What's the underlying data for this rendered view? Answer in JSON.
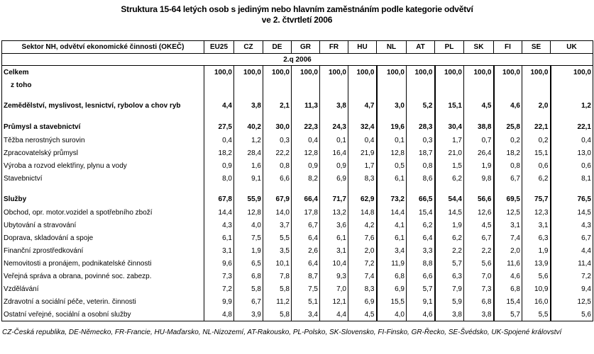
{
  "title_line1": "Struktura 15-64 letých osob s jediným nebo hlavním zaměstnáním podle kategorie odvětví",
  "title_line2": "ve 2. čtvrtletí 2006",
  "header": {
    "label": "Sektor NH, odvětví ekonomické činnosti (OKEČ)",
    "countries": [
      "EU25",
      "CZ",
      "DE",
      "GR",
      "FR",
      "HU",
      "NL",
      "AT",
      "PL",
      "SK",
      "FI",
      "SE",
      "UK"
    ]
  },
  "period": "2.q 2006",
  "rows": [
    {
      "label": "Celkem",
      "bold": true,
      "values": [
        "100,0",
        "100,0",
        "100,0",
        "100,0",
        "100,0",
        "100,0",
        "100,0",
        "100,0",
        "100,0",
        "100,0",
        "100,0",
        "100,0",
        "100,0"
      ]
    },
    {
      "label": "z toho",
      "bold": true,
      "values": []
    },
    {
      "label": "Zemědělství, myslivost, lesnictví, rybolov a chov ryb",
      "bold": true,
      "values": [
        "4,4",
        "3,8",
        "2,1",
        "11,3",
        "3,8",
        "4,7",
        "3,0",
        "5,2",
        "15,1",
        "4,5",
        "4,6",
        "2,0",
        "1,2"
      ]
    },
    {
      "label": "Průmysl a stavebnictví",
      "bold": true,
      "values": [
        "27,5",
        "40,2",
        "30,0",
        "22,3",
        "24,3",
        "32,4",
        "19,6",
        "28,3",
        "30,4",
        "38,8",
        "25,8",
        "22,1",
        "22,1"
      ]
    },
    {
      "label": "Těžba nerostných surovin",
      "bold": false,
      "values": [
        "0,4",
        "1,2",
        "0,3",
        "0,4",
        "0,1",
        "0,4",
        "0,1",
        "0,3",
        "1,7",
        "0,7",
        "0,2",
        "0,2",
        "0,4"
      ]
    },
    {
      "label": "Zpracovatelský průmysl",
      "bold": false,
      "values": [
        "18,2",
        "28,4",
        "22,2",
        "12,8",
        "16,4",
        "21,9",
        "12,8",
        "18,7",
        "21,0",
        "26,4",
        "18,2",
        "15,1",
        "13,0"
      ]
    },
    {
      "label": "Výroba a rozvod elektřiny, plynu a vody",
      "bold": false,
      "values": [
        "0,9",
        "1,6",
        "0,8",
        "0,9",
        "0,9",
        "1,7",
        "0,5",
        "0,8",
        "1,5",
        "1,9",
        "0,8",
        "0,6",
        "0,6"
      ]
    },
    {
      "label": "Stavebnictví",
      "bold": false,
      "values": [
        "8,0",
        "9,1",
        "6,6",
        "8,2",
        "6,9",
        "8,3",
        "6,1",
        "8,6",
        "6,2",
        "9,8",
        "6,7",
        "6,2",
        "8,1"
      ]
    },
    {
      "label": "Služby",
      "bold": true,
      "values": [
        "67,8",
        "55,9",
        "67,9",
        "66,4",
        "71,7",
        "62,9",
        "73,2",
        "66,5",
        "54,4",
        "56,6",
        "69,5",
        "75,7",
        "76,5"
      ]
    },
    {
      "label": "Obchod, opr. motor.vozidel a spotřebního zboží",
      "bold": false,
      "values": [
        "14,4",
        "12,8",
        "14,0",
        "17,8",
        "13,2",
        "14,8",
        "14,4",
        "15,4",
        "14,5",
        "12,6",
        "12,5",
        "12,3",
        "14,5"
      ]
    },
    {
      "label": "Ubytování a stravování",
      "bold": false,
      "values": [
        "4,3",
        "4,0",
        "3,7",
        "6,7",
        "3,6",
        "4,2",
        "4,1",
        "6,2",
        "1,9",
        "4,5",
        "3,1",
        "3,1",
        "4,3"
      ]
    },
    {
      "label": "Doprava, skladování a spoje",
      "bold": false,
      "values": [
        "6,1",
        "7,5",
        "5,5",
        "6,4",
        "6,1",
        "7,6",
        "6,1",
        "6,4",
        "6,2",
        "6,7",
        "7,4",
        "6,3",
        "6,7"
      ]
    },
    {
      "label": "Finanční zprostředkování",
      "bold": false,
      "values": [
        "3,1",
        "1,9",
        "3,5",
        "2,6",
        "3,1",
        "2,0",
        "3,4",
        "3,3",
        "2,2",
        "2,2",
        "2,0",
        "1,9",
        "4,4"
      ]
    },
    {
      "label": "Nemovitosti a pronájem, podnikatelské činnosti",
      "bold": false,
      "values": [
        "9,6",
        "6,5",
        "10,1",
        "6,4",
        "10,4",
        "7,2",
        "11,9",
        "8,8",
        "5,7",
        "5,6",
        "11,6",
        "13,9",
        "11,4"
      ]
    },
    {
      "label": "Veřejná správa a obrana, povinné soc. zabezp.",
      "bold": false,
      "values": [
        "7,3",
        "6,8",
        "7,8",
        "8,7",
        "9,3",
        "7,4",
        "6,8",
        "6,6",
        "6,3",
        "7,0",
        "4,6",
        "5,6",
        "7,2"
      ]
    },
    {
      "label": "Vzdělávání",
      "bold": false,
      "values": [
        "7,2",
        "5,8",
        "5,8",
        "7,5",
        "7,0",
        "8,3",
        "6,9",
        "5,7",
        "7,9",
        "7,3",
        "6,8",
        "10,9",
        "9,4"
      ]
    },
    {
      "label": "Zdravotní a sociální péče, veterin. činnosti",
      "bold": false,
      "values": [
        "9,9",
        "6,7",
        "11,2",
        "5,1",
        "12,1",
        "6,9",
        "15,5",
        "9,1",
        "5,9",
        "6,8",
        "15,4",
        "16,0",
        "12,5"
      ]
    },
    {
      "label": "Ostatní veřejné, sociální a osobní služby",
      "bold": false,
      "values": [
        "4,8",
        "3,9",
        "5,8",
        "3,4",
        "4,4",
        "4,5",
        "4,0",
        "4,6",
        "3,8",
        "3,8",
        "5,7",
        "5,5",
        "5,6"
      ]
    }
  ],
  "footnote": "CZ-Česká republika, DE-Německo, FR-Francie, HU-Maďarsko, NL-Nizozemí, AT-Rakousko, PL-Polsko, SK-Slovensko, FI-Finsko, GR-Řecko, SE-Švédsko, UK-Spojené království"
}
